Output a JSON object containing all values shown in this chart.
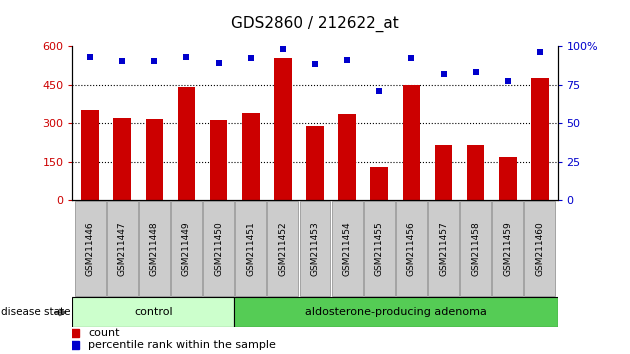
{
  "title": "GDS2860 / 212622_at",
  "samples": [
    "GSM211446",
    "GSM211447",
    "GSM211448",
    "GSM211449",
    "GSM211450",
    "GSM211451",
    "GSM211452",
    "GSM211453",
    "GSM211454",
    "GSM211455",
    "GSM211456",
    "GSM211457",
    "GSM211458",
    "GSM211459",
    "GSM211460"
  ],
  "counts": [
    350,
    320,
    315,
    440,
    310,
    340,
    555,
    290,
    335,
    128,
    448,
    215,
    215,
    168,
    475
  ],
  "percentiles": [
    93,
    90,
    90,
    93,
    89,
    92,
    98,
    88,
    91,
    71,
    92,
    82,
    83,
    77,
    96
  ],
  "control_count": 5,
  "ylim_left": [
    0,
    600
  ],
  "ylim_right": [
    0,
    100
  ],
  "yticks_left": [
    0,
    150,
    300,
    450,
    600
  ],
  "yticks_right": [
    0,
    25,
    50,
    75,
    100
  ],
  "bar_color": "#cc0000",
  "dot_color": "#0000cc",
  "control_color": "#ccffcc",
  "adenoma_color": "#55cc55",
  "tick_bg_color": "#cccccc",
  "control_label": "control",
  "adenoma_label": "aldosterone-producing adenoma",
  "disease_state_label": "disease state",
  "legend_count_label": "count",
  "legend_pct_label": "percentile rank within the sample",
  "figw": 6.3,
  "figh": 3.54
}
